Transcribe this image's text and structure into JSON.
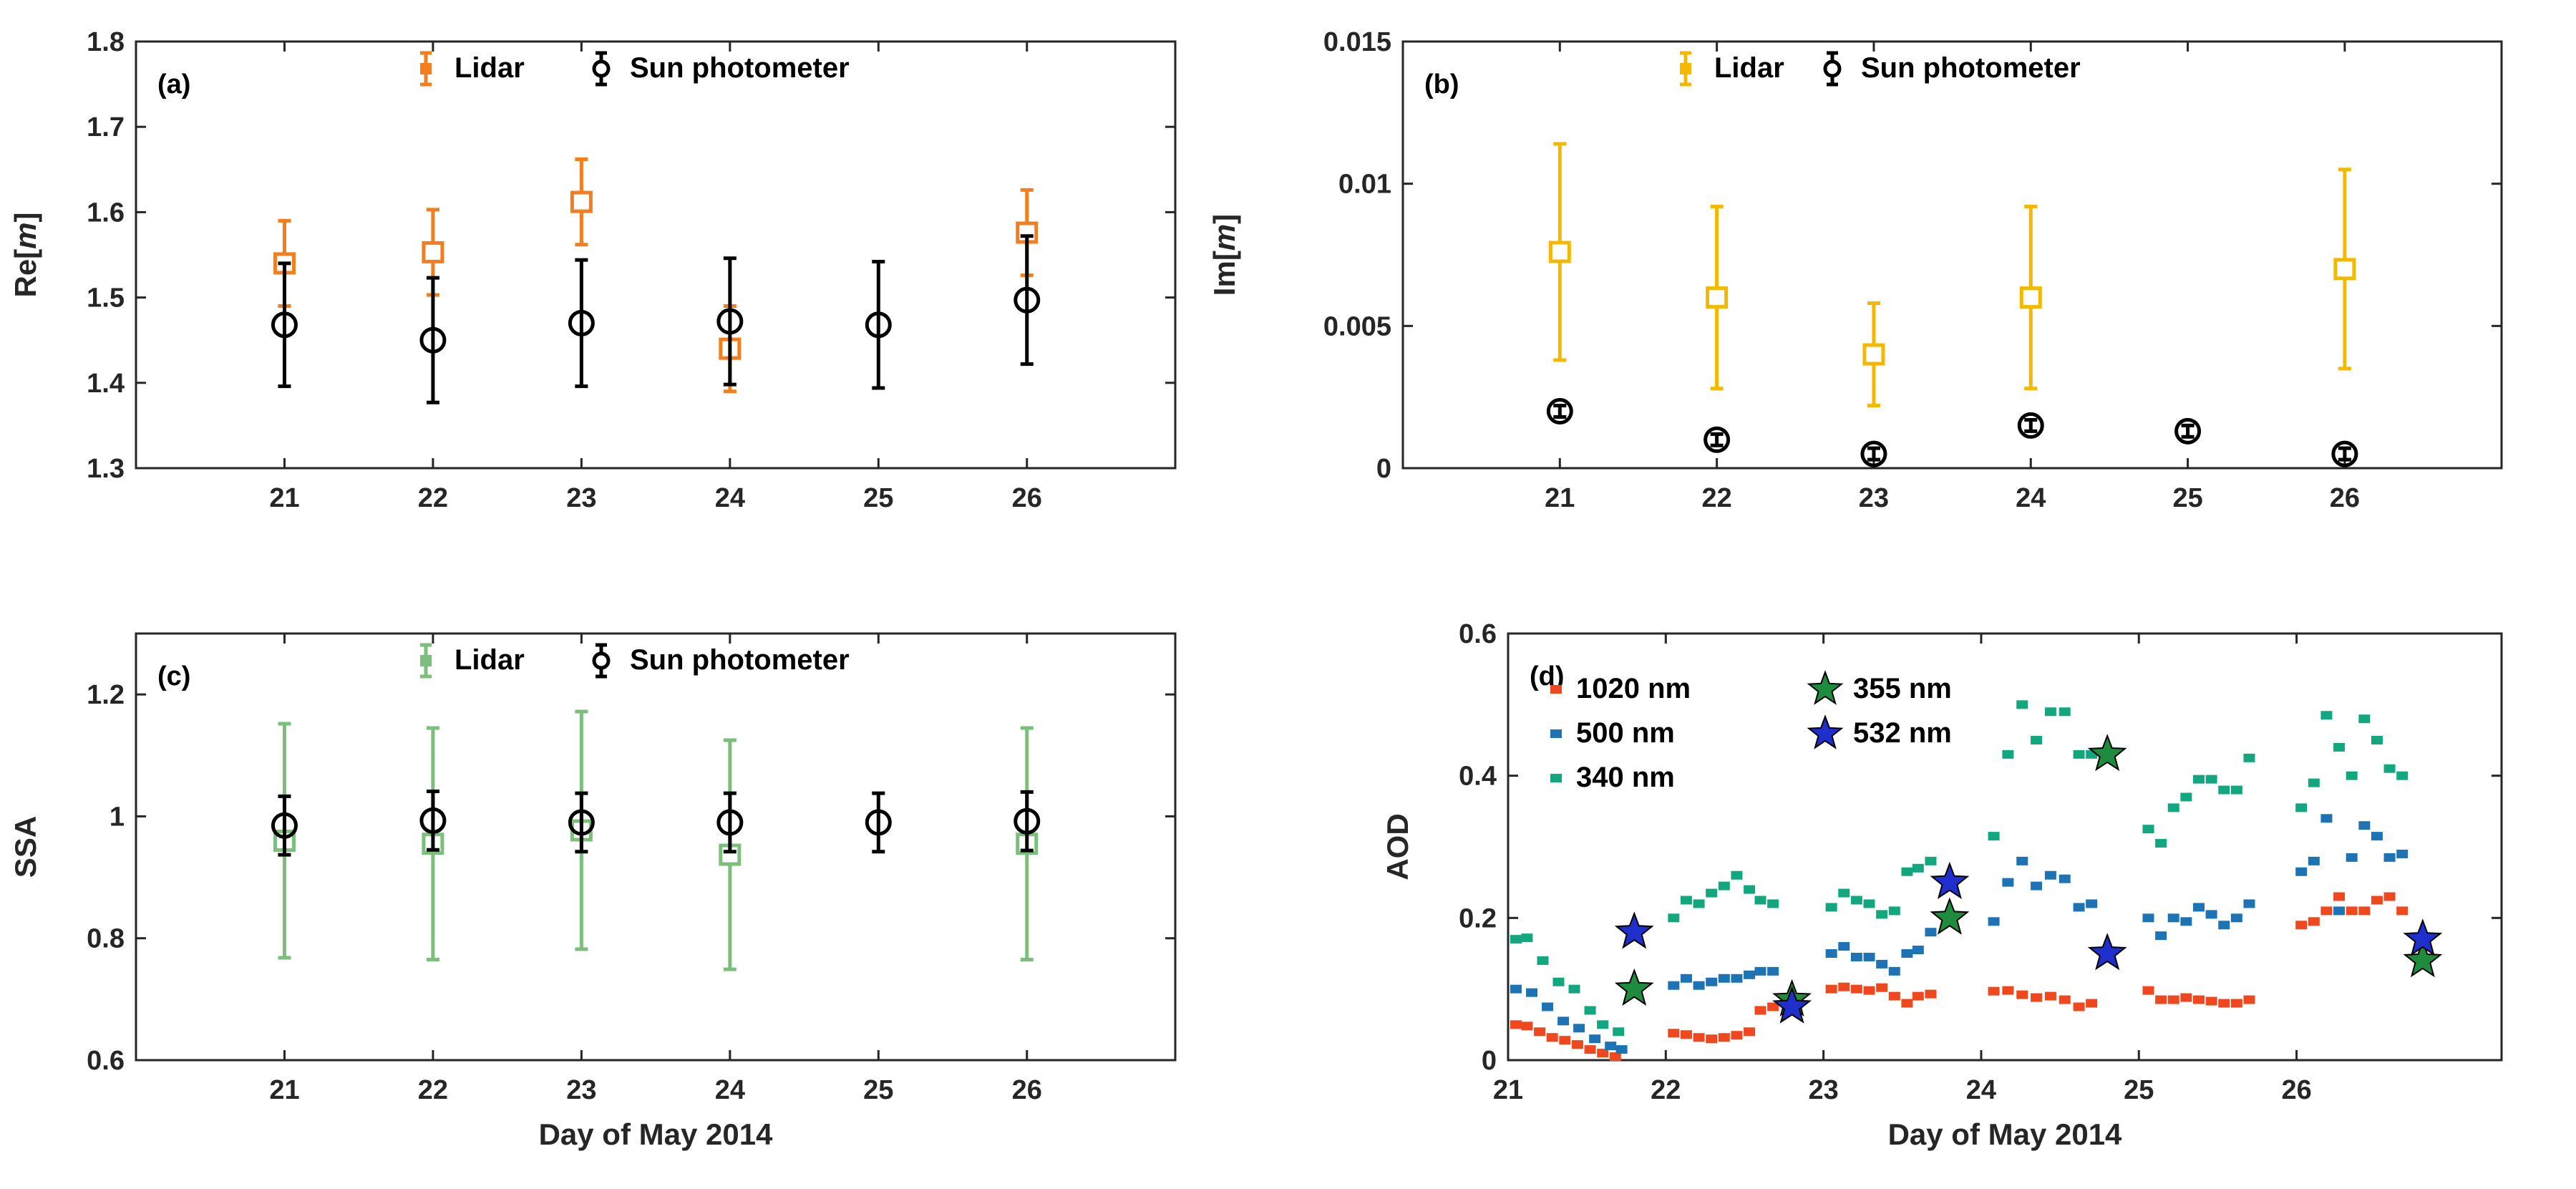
{
  "chart_data": [
    {
      "id": "a",
      "type": "errorbar",
      "panel_label": "(a)",
      "ylabel_prefix": "Re[",
      "ylabel_var": "m",
      "ylabel_suffix": "]",
      "xlabel": "",
      "xlim": [
        20,
        26.999
      ],
      "ylim": [
        1.3,
        1.8
      ],
      "xticks": [
        21,
        22,
        23,
        24,
        25,
        26
      ],
      "xtick_labels": [
        "21",
        "22",
        "23",
        "24",
        "25",
        "26"
      ],
      "yticks": [
        1.3,
        1.4,
        1.5,
        1.6,
        1.7,
        1.8
      ],
      "ytick_labels": [
        "1.3",
        "1.4",
        "1.5",
        "1.6",
        "1.7",
        "1.8"
      ],
      "legend": [
        "Lidar",
        "Sun photometer"
      ],
      "series": [
        {
          "name": "Lidar",
          "color": "#F27E1F",
          "marker": "square",
          "x": [
            21,
            22,
            23,
            24,
            26
          ],
          "y": [
            1.54,
            1.553,
            1.612,
            1.44,
            1.576
          ],
          "err": [
            0.05,
            0.05,
            0.05,
            0.05,
            0.05
          ]
        },
        {
          "name": "Sun photometer",
          "color": "#000000",
          "marker": "circle",
          "x": [
            21,
            22,
            23,
            24,
            25,
            26
          ],
          "y": [
            1.468,
            1.45,
            1.47,
            1.472,
            1.468,
            1.497
          ],
          "err": [
            0.072,
            0.073,
            0.074,
            0.074,
            0.074,
            0.075
          ]
        }
      ]
    },
    {
      "id": "b",
      "type": "errorbar",
      "panel_label": "(b)",
      "ylabel_prefix": "Im[",
      "ylabel_var": "m",
      "ylabel_suffix": "]",
      "xlabel": "",
      "xlim": [
        20,
        26.999
      ],
      "ylim": [
        0,
        0.015
      ],
      "xticks": [
        21,
        22,
        23,
        24,
        25,
        26
      ],
      "xtick_labels": [
        "21",
        "22",
        "23",
        "24",
        "25",
        "26"
      ],
      "yticks": [
        0,
        0.005,
        0.01,
        0.015
      ],
      "ytick_labels": [
        "0",
        "0.005",
        "0.01",
        "0.015"
      ],
      "legend": [
        "Lidar",
        "Sun photometer"
      ],
      "series": [
        {
          "name": "Lidar",
          "color": "#F5B800",
          "marker": "square",
          "x": [
            21,
            22,
            23,
            24,
            26
          ],
          "y": [
            0.0076,
            0.006,
            0.004,
            0.006,
            0.007
          ],
          "err": [
            0.0038,
            0.0032,
            0.0018,
            0.0032,
            0.0035
          ]
        },
        {
          "name": "Sun photometer",
          "color": "#000000",
          "marker": "circle",
          "x": [
            21,
            22,
            23,
            24,
            25,
            26
          ],
          "y": [
            0.002,
            0.001,
            0.0005,
            0.0015,
            0.0013,
            0.0005
          ],
          "err": [
            0.0002,
            0.0002,
            0.0002,
            0.0002,
            0.0002,
            0.0002
          ]
        }
      ]
    },
    {
      "id": "c",
      "type": "errorbar",
      "panel_label": "(c)",
      "ylabel_prefix": "SSA",
      "ylabel_var": "",
      "ylabel_suffix": "",
      "xlabel": "Day of May 2014",
      "xlim": [
        20,
        26.999
      ],
      "ylim": [
        0.6,
        1.3
      ],
      "xticks": [
        21,
        22,
        23,
        24,
        25,
        26
      ],
      "xtick_labels": [
        "21",
        "22",
        "23",
        "24",
        "25",
        "26"
      ],
      "yticks": [
        0.6,
        0.8,
        1,
        1.2
      ],
      "ytick_labels": [
        "0.6",
        "0.8",
        "1",
        "1.2"
      ],
      "legend": [
        "Lidar",
        "Sun photometer"
      ],
      "series": [
        {
          "name": "Lidar",
          "color": "#7CBF7C",
          "marker": "square",
          "x": [
            21,
            22,
            23,
            24,
            26
          ],
          "y": [
            0.96,
            0.955,
            0.977,
            0.937,
            0.955
          ],
          "err": [
            0.192,
            0.19,
            0.195,
            0.188,
            0.19
          ]
        },
        {
          "name": "Sun photometer",
          "color": "#000000",
          "marker": "circle",
          "x": [
            21,
            22,
            23,
            24,
            25,
            26
          ],
          "y": [
            0.985,
            0.993,
            0.99,
            0.99,
            0.99,
            0.992
          ],
          "err": [
            0.048,
            0.048,
            0.048,
            0.048,
            0.048,
            0.048
          ]
        }
      ]
    },
    {
      "id": "d",
      "type": "scatter",
      "panel_label": "(d)",
      "ylabel_prefix": "AOD",
      "ylabel_var": "",
      "ylabel_suffix": "",
      "xlabel": "Day of May 2014",
      "xlim": [
        21,
        27.3
      ],
      "ylim": [
        0,
        0.6
      ],
      "xticks": [
        21,
        22,
        23,
        24,
        25,
        26
      ],
      "xtick_labels": [
        "21",
        "22",
        "23",
        "24",
        "25",
        "26"
      ],
      "yticks": [
        0,
        0.2,
        0.4,
        0.6
      ],
      "ytick_labels": [
        "0",
        "0.2",
        "0.4",
        "0.6"
      ],
      "legend": [
        "1020 nm",
        "500 nm",
        "340 nm",
        "355 nm",
        "532 nm"
      ],
      "series": [
        {
          "name": "1020 nm",
          "color": "#F0481E",
          "marker": "dash",
          "x": [
            21.05,
            21.12,
            21.2,
            21.28,
            21.36,
            21.44,
            21.52,
            21.6,
            21.68,
            22.05,
            22.13,
            22.21,
            22.29,
            22.37,
            22.45,
            22.53,
            22.6,
            22.68,
            23.05,
            23.13,
            23.21,
            23.29,
            23.37,
            23.45,
            23.53,
            23.6,
            23.68,
            24.08,
            24.17,
            24.26,
            24.35,
            24.44,
            24.53,
            24.62,
            24.7,
            25.06,
            25.14,
            25.22,
            25.3,
            25.38,
            25.46,
            25.54,
            25.62,
            25.7,
            26.03,
            26.11,
            26.19,
            26.27,
            26.35,
            26.43,
            26.51,
            26.59,
            26.67
          ],
          "y": [
            0.05,
            0.048,
            0.04,
            0.032,
            0.028,
            0.022,
            0.015,
            0.01,
            0.005,
            0.038,
            0.036,
            0.032,
            0.03,
            0.032,
            0.035,
            0.04,
            0.07,
            0.075,
            0.1,
            0.103,
            0.1,
            0.098,
            0.102,
            0.09,
            0.08,
            0.09,
            0.093,
            0.097,
            0.098,
            0.092,
            0.088,
            0.09,
            0.085,
            0.075,
            0.08,
            0.098,
            0.085,
            0.085,
            0.088,
            0.085,
            0.083,
            0.08,
            0.08,
            0.085,
            0.19,
            0.195,
            0.21,
            0.23,
            0.21,
            0.21,
            0.225,
            0.23,
            0.21
          ]
        },
        {
          "name": "500 nm",
          "color": "#1E73B4",
          "marker": "dash",
          "x": [
            21.05,
            21.15,
            21.25,
            21.35,
            21.45,
            21.55,
            21.65,
            21.72,
            22.05,
            22.13,
            22.21,
            22.29,
            22.37,
            22.45,
            22.53,
            22.6,
            22.68,
            23.05,
            23.13,
            23.21,
            23.29,
            23.37,
            23.45,
            23.53,
            23.6,
            23.68,
            24.08,
            24.17,
            24.26,
            24.35,
            24.44,
            24.53,
            24.62,
            24.7,
            25.06,
            25.14,
            25.22,
            25.3,
            25.38,
            25.46,
            25.54,
            25.62,
            25.7,
            26.03,
            26.11,
            26.19,
            26.27,
            26.35,
            26.43,
            26.51,
            26.59,
            26.67
          ],
          "y": [
            0.1,
            0.095,
            0.075,
            0.055,
            0.045,
            0.03,
            0.02,
            0.015,
            0.105,
            0.115,
            0.105,
            0.11,
            0.115,
            0.115,
            0.12,
            0.125,
            0.125,
            0.15,
            0.16,
            0.145,
            0.145,
            0.135,
            0.125,
            0.15,
            0.155,
            0.18,
            0.195,
            0.25,
            0.28,
            0.245,
            0.26,
            0.255,
            0.215,
            0.22,
            0.2,
            0.175,
            0.2,
            0.195,
            0.215,
            0.205,
            0.19,
            0.2,
            0.22,
            0.265,
            0.28,
            0.34,
            0.21,
            0.285,
            0.33,
            0.315,
            0.285,
            0.29
          ]
        },
        {
          "name": "340 nm",
          "color": "#13A77F",
          "marker": "dash",
          "x": [
            21.05,
            21.12,
            21.22,
            21.32,
            21.42,
            21.52,
            21.6,
            21.7,
            22.05,
            22.13,
            22.21,
            22.29,
            22.37,
            22.45,
            22.53,
            22.6,
            22.68,
            23.05,
            23.13,
            23.21,
            23.29,
            23.37,
            23.45,
            23.53,
            23.6,
            23.68,
            24.08,
            24.17,
            24.26,
            24.35,
            24.44,
            24.53,
            24.62,
            24.7,
            25.06,
            25.14,
            25.22,
            25.3,
            25.38,
            25.46,
            25.54,
            25.62,
            25.7,
            26.03,
            26.11,
            26.19,
            26.27,
            26.35,
            26.43,
            26.51,
            26.59,
            26.67
          ],
          "y": [
            0.17,
            0.172,
            0.14,
            0.11,
            0.1,
            0.07,
            0.05,
            0.04,
            0.2,
            0.225,
            0.22,
            0.235,
            0.245,
            0.26,
            0.24,
            0.225,
            0.22,
            0.215,
            0.235,
            0.225,
            0.22,
            0.205,
            0.21,
            0.265,
            0.27,
            0.28,
            0.315,
            0.43,
            0.5,
            0.45,
            0.49,
            0.49,
            0.43,
            0.43,
            0.325,
            0.305,
            0.355,
            0.37,
            0.395,
            0.395,
            0.38,
            0.38,
            0.425,
            0.355,
            0.39,
            0.485,
            0.44,
            0.4,
            0.48,
            0.45,
            0.41,
            0.4
          ]
        },
        {
          "name": "355 nm",
          "color": "#1E8C3C",
          "marker": "star",
          "x": [
            21.8,
            22.8,
            23.8,
            24.8,
            26.8
          ],
          "y": [
            0.1,
            0.085,
            0.2,
            0.43,
            0.14
          ]
        },
        {
          "name": "532 nm",
          "color": "#1E2FCC",
          "marker": "star",
          "x": [
            21.8,
            22.8,
            23.8,
            24.8,
            26.8
          ],
          "y": [
            0.18,
            0.075,
            0.25,
            0.15,
            0.17
          ]
        }
      ]
    }
  ]
}
